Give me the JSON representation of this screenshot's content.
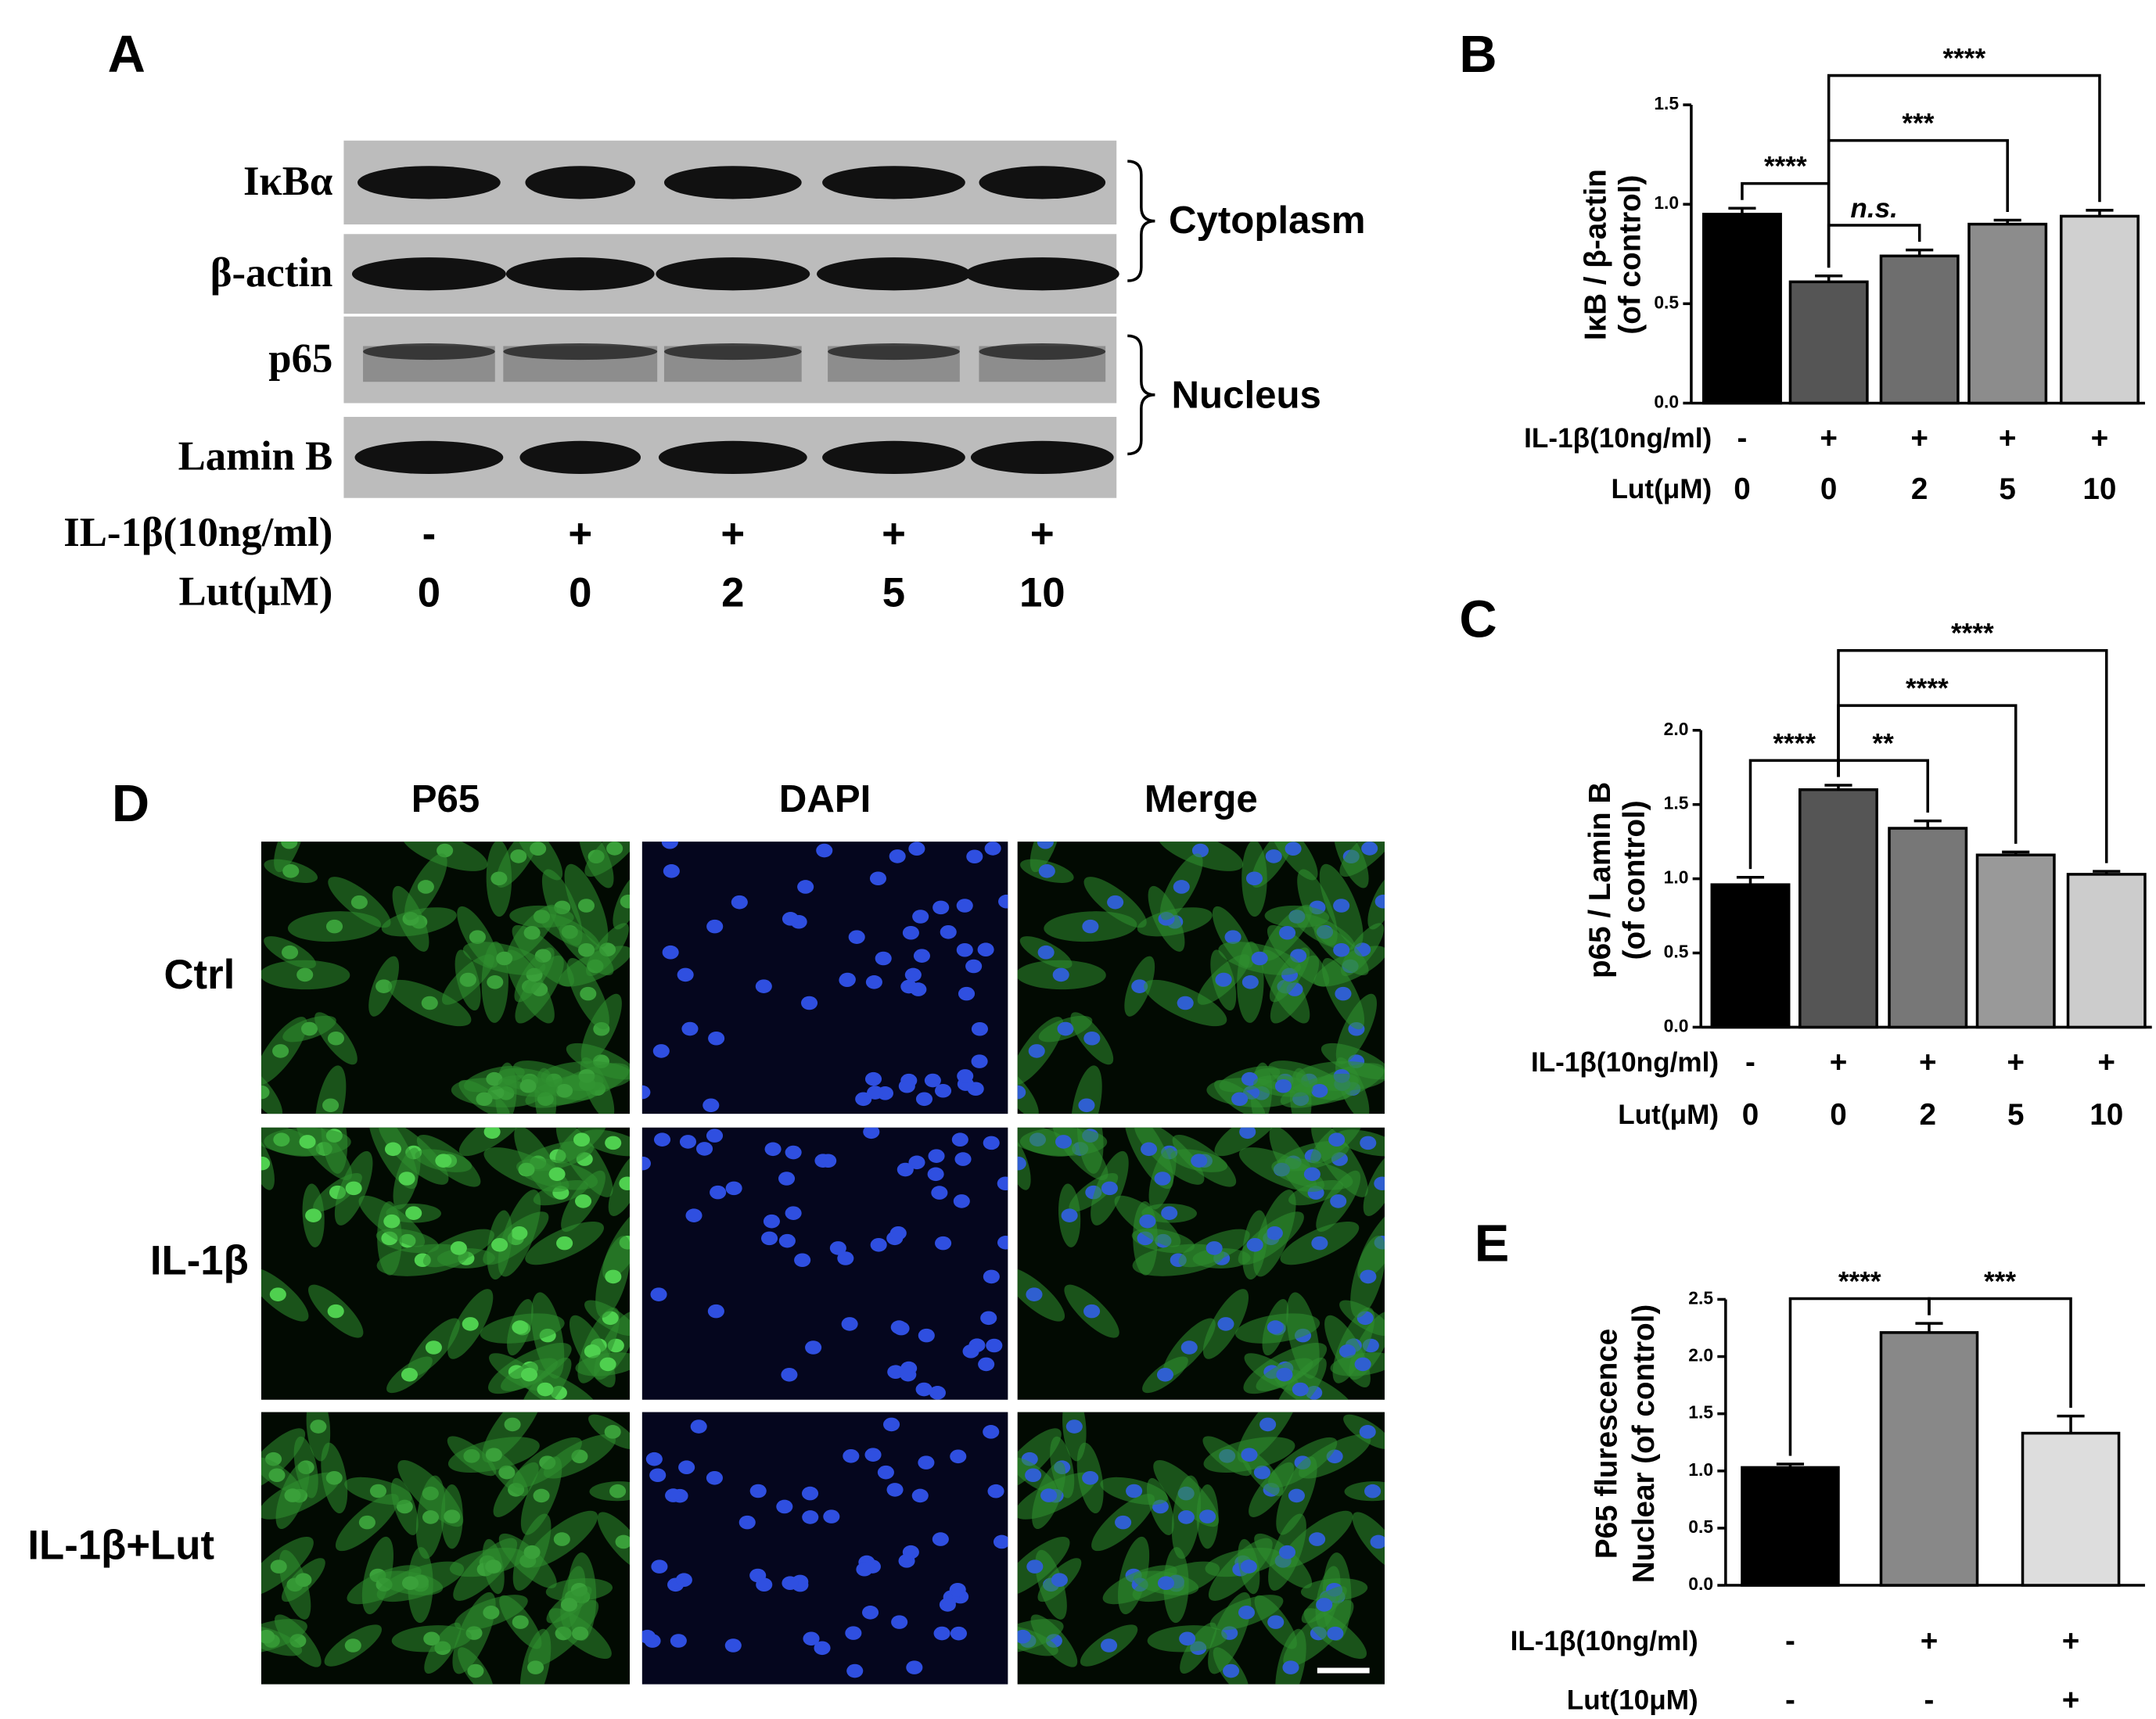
{
  "panel_labels": [
    "A",
    "B",
    "C",
    "D",
    "E"
  ],
  "blot": {
    "proteins": [
      "IκBα",
      "β-actin",
      "p65",
      "Lamin B"
    ],
    "compartments": [
      "Cytoplasm",
      "Nucleus"
    ],
    "row_labels": [
      "IL-1β(10ng/ml)",
      "Lut(μM)"
    ],
    "rows": [
      [
        "-",
        "+",
        "+",
        "+",
        "+"
      ],
      [
        "0",
        "0",
        "2",
        "5",
        "10"
      ]
    ]
  },
  "immunofluorescence": {
    "channels": [
      "P65",
      "DAPI",
      "Merge"
    ],
    "conditions": [
      "Ctrl",
      "IL-1β",
      "IL-1β+Lut"
    ]
  },
  "chart_data": [
    {
      "type": "bar",
      "ylabel": [
        "IκB / β-actin",
        "(of control)"
      ],
      "row_labels": [
        "IL-1β(10ng/ml)",
        "Lut(μM)"
      ],
      "rows": [
        [
          "-",
          "+",
          "+",
          "+",
          "+"
        ],
        [
          "0",
          "0",
          "2",
          "5",
          "10"
        ]
      ],
      "values": [
        0.95,
        0.61,
        0.74,
        0.9,
        0.94
      ],
      "errors": [
        0.03,
        0.03,
        0.03,
        0.02,
        0.03
      ],
      "colors": [
        "#000000",
        "#555555",
        "#6e6e6e",
        "#8c8c8c",
        "#d0d0d0"
      ],
      "ylim": [
        0,
        1.5
      ],
      "yticks": [
        {
          "value": 0,
          "label": "0.0"
        },
        0.5,
        {
          "value": 1,
          "label": "1.0"
        },
        1.5
      ],
      "brackets": [
        {
          "from": 0,
          "to": 1,
          "label": "****"
        },
        {
          "from": 1,
          "to": 2,
          "label": "n.s."
        },
        {
          "from": 1,
          "to": 3,
          "label": "***"
        },
        {
          "from": 1,
          "to": 4,
          "label": "****"
        }
      ]
    },
    {
      "type": "bar",
      "ylabel": [
        "p65 / Lamin B",
        "(of control)"
      ],
      "row_labels": [
        "IL-1β(10ng/ml)",
        "Lut(μM)"
      ],
      "rows": [
        [
          "-",
          "+",
          "+",
          "+",
          "+"
        ],
        [
          "0",
          "0",
          "2",
          "5",
          "10"
        ]
      ],
      "values": [
        0.96,
        1.6,
        1.34,
        1.16,
        1.03
      ],
      "errors": [
        0.05,
        0.03,
        0.05,
        0.02,
        0.02
      ],
      "colors": [
        "#000000",
        "#555555",
        "#777777",
        "#999999",
        "#cccccc"
      ],
      "ylim": [
        0,
        2
      ],
      "yticks": [
        {
          "value": 0,
          "label": "0.0"
        },
        0.5,
        {
          "value": 1,
          "label": "1.0"
        },
        1.5,
        {
          "value": 2,
          "label": "2.0"
        }
      ],
      "brackets": [
        {
          "from": 0,
          "to": 1,
          "label": "****"
        },
        {
          "from": 1,
          "to": 2,
          "label": "**"
        },
        {
          "from": 1,
          "to": 3,
          "label": "****"
        },
        {
          "from": 1,
          "to": 4,
          "label": "****"
        }
      ]
    },
    {
      "type": "bar",
      "ylabel": [
        "P65 flurescence",
        "Nuclear (of control)"
      ],
      "row_labels": [
        "IL-1β(10ng/ml)",
        "Lut(10μM)"
      ],
      "rows": [
        [
          "-",
          "+",
          "+"
        ],
        [
          "-",
          "-",
          "+"
        ]
      ],
      "values": [
        1.03,
        2.21,
        1.33
      ],
      "errors": [
        0.03,
        0.08,
        0.15
      ],
      "colors": [
        "#000000",
        "#888888",
        "#dddddd"
      ],
      "ylim": [
        0,
        2.5
      ],
      "yticks": [
        {
          "value": 0,
          "label": "0.0"
        },
        0.5,
        {
          "value": 1,
          "label": "1.0"
        },
        1.5,
        {
          "value": 2,
          "label": "2.0"
        },
        2.5
      ],
      "brackets": [
        {
          "from": 0,
          "to": 1,
          "label": "****"
        },
        {
          "from": 1,
          "to": 2,
          "label": "***"
        }
      ]
    }
  ]
}
